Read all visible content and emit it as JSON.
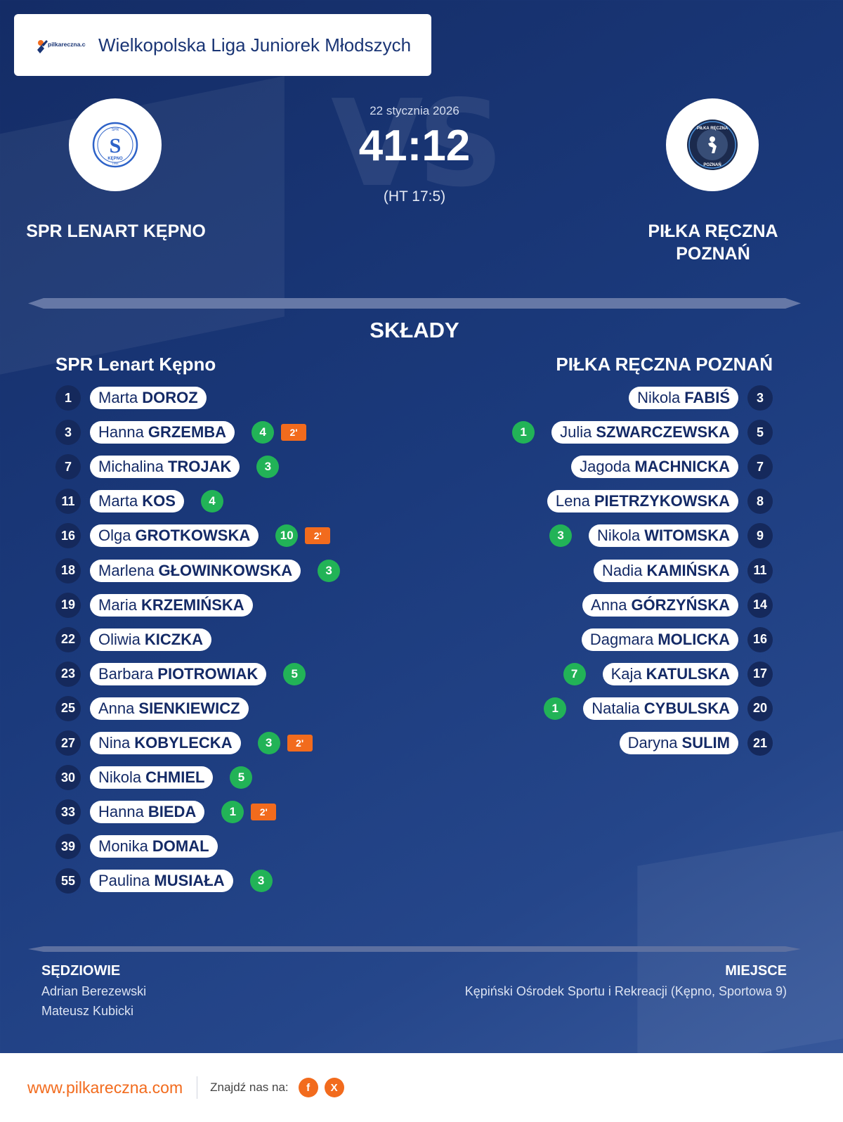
{
  "header": {
    "brand_logo_text": "pilkareczna.com",
    "league": "Wielkopolska Liga Juniorek Młodszych"
  },
  "match": {
    "date": "22 stycznia 2026",
    "score": "41:12",
    "halftime": "(HT 17:5)",
    "vs_watermark": "VS",
    "home_team": "SPR LENART KĘPNO",
    "away_team": "PIŁKA RĘCZNA POZNAŃ"
  },
  "badges": {
    "home_logo_icon": "spr-kepno-crest-icon",
    "away_logo_icon": "pilka-reczna-poznan-crest-icon",
    "home_logo_text": [
      "SPR",
      "KĘPNO",
      "1998",
      "S"
    ],
    "away_logo_text": [
      "PIŁKA RĘCZNA",
      "POZNAŃ"
    ]
  },
  "lineups": {
    "title": "SKŁADY",
    "home_title": "SPR Lenart Kępno",
    "away_title": "PIŁKA RĘCZNA POZNAŃ",
    "suspension_label": "2'",
    "home": [
      {
        "number": "1",
        "first": "Marta",
        "last": "DOROZ",
        "goals": null,
        "suspension": false
      },
      {
        "number": "3",
        "first": "Hanna",
        "last": "GRZEMBA",
        "goals": "4",
        "suspension": true
      },
      {
        "number": "7",
        "first": "Michalina",
        "last": "TROJAK",
        "goals": "3",
        "suspension": false
      },
      {
        "number": "11",
        "first": "Marta",
        "last": "KOS",
        "goals": "4",
        "suspension": false
      },
      {
        "number": "16",
        "first": "Olga",
        "last": "GROTKOWSKA",
        "goals": "10",
        "suspension": true
      },
      {
        "number": "18",
        "first": "Marlena",
        "last": "GŁOWINKOWSKA",
        "goals": "3",
        "suspension": false
      },
      {
        "number": "19",
        "first": "Maria",
        "last": "KRZEMIŃSKA",
        "goals": null,
        "suspension": false
      },
      {
        "number": "22",
        "first": "Oliwia",
        "last": "KICZKA",
        "goals": null,
        "suspension": false
      },
      {
        "number": "23",
        "first": "Barbara",
        "last": "PIOTROWIAK",
        "goals": "5",
        "suspension": false
      },
      {
        "number": "25",
        "first": "Anna",
        "last": "SIENKIEWICZ",
        "goals": null,
        "suspension": false
      },
      {
        "number": "27",
        "first": "Nina",
        "last": "KOBYLECKA",
        "goals": "3",
        "suspension": true
      },
      {
        "number": "30",
        "first": "Nikola",
        "last": "CHMIEL",
        "goals": "5",
        "suspension": false
      },
      {
        "number": "33",
        "first": "Hanna",
        "last": "BIEDA",
        "goals": "1",
        "suspension": true
      },
      {
        "number": "39",
        "first": "Monika",
        "last": "DOMAL",
        "goals": null,
        "suspension": false
      },
      {
        "number": "55",
        "first": "Paulina",
        "last": "MUSIAŁA",
        "goals": "3",
        "suspension": false
      }
    ],
    "away": [
      {
        "number": "3",
        "first": "Nikola",
        "last": "FABIŚ",
        "goals": null
      },
      {
        "number": "5",
        "first": "Julia",
        "last": "SZWARCZEWSKA",
        "goals": "1"
      },
      {
        "number": "7",
        "first": "Jagoda",
        "last": "MACHNICKA",
        "goals": null
      },
      {
        "number": "8",
        "first": "Lena",
        "last": "PIETRZYKOWSKA",
        "goals": null
      },
      {
        "number": "9",
        "first": "Nikola",
        "last": "WITOMSKA",
        "goals": "3"
      },
      {
        "number": "11",
        "first": "Nadia",
        "last": "KAMIŃSKA",
        "goals": null
      },
      {
        "number": "14",
        "first": "Anna",
        "last": "GÓRZYŃSKA",
        "goals": null
      },
      {
        "number": "16",
        "first": "Dagmara",
        "last": "MOLICKA",
        "goals": null
      },
      {
        "number": "17",
        "first": "Kaja",
        "last": "KATULSKA",
        "goals": "7"
      },
      {
        "number": "20",
        "first": "Natalia",
        "last": "CYBULSKA",
        "goals": "1"
      },
      {
        "number": "21",
        "first": "Daryna",
        "last": "SULIM",
        "goals": null
      }
    ]
  },
  "officials": {
    "title": "SĘDZIOWIE",
    "names": [
      "Adrian Berezewski",
      "Mateusz Kubicki"
    ]
  },
  "venue": {
    "title": "MIEJSCE",
    "name": "Kępiński Ośrodek Sportu i Rekreacji (Kępno, Sportowa 9)"
  },
  "footer": {
    "site": "www.pilkareczna.com",
    "find_us": "Znajdź nas na:",
    "social": [
      {
        "label": "f",
        "icon": "facebook-icon"
      },
      {
        "label": "X",
        "icon": "x-icon"
      }
    ]
  },
  "colors": {
    "background": "#1b3a7c",
    "accent": "#f26b1d",
    "goal": "#22b357",
    "number_badge": "#15295c",
    "name_text": "#142a66"
  }
}
